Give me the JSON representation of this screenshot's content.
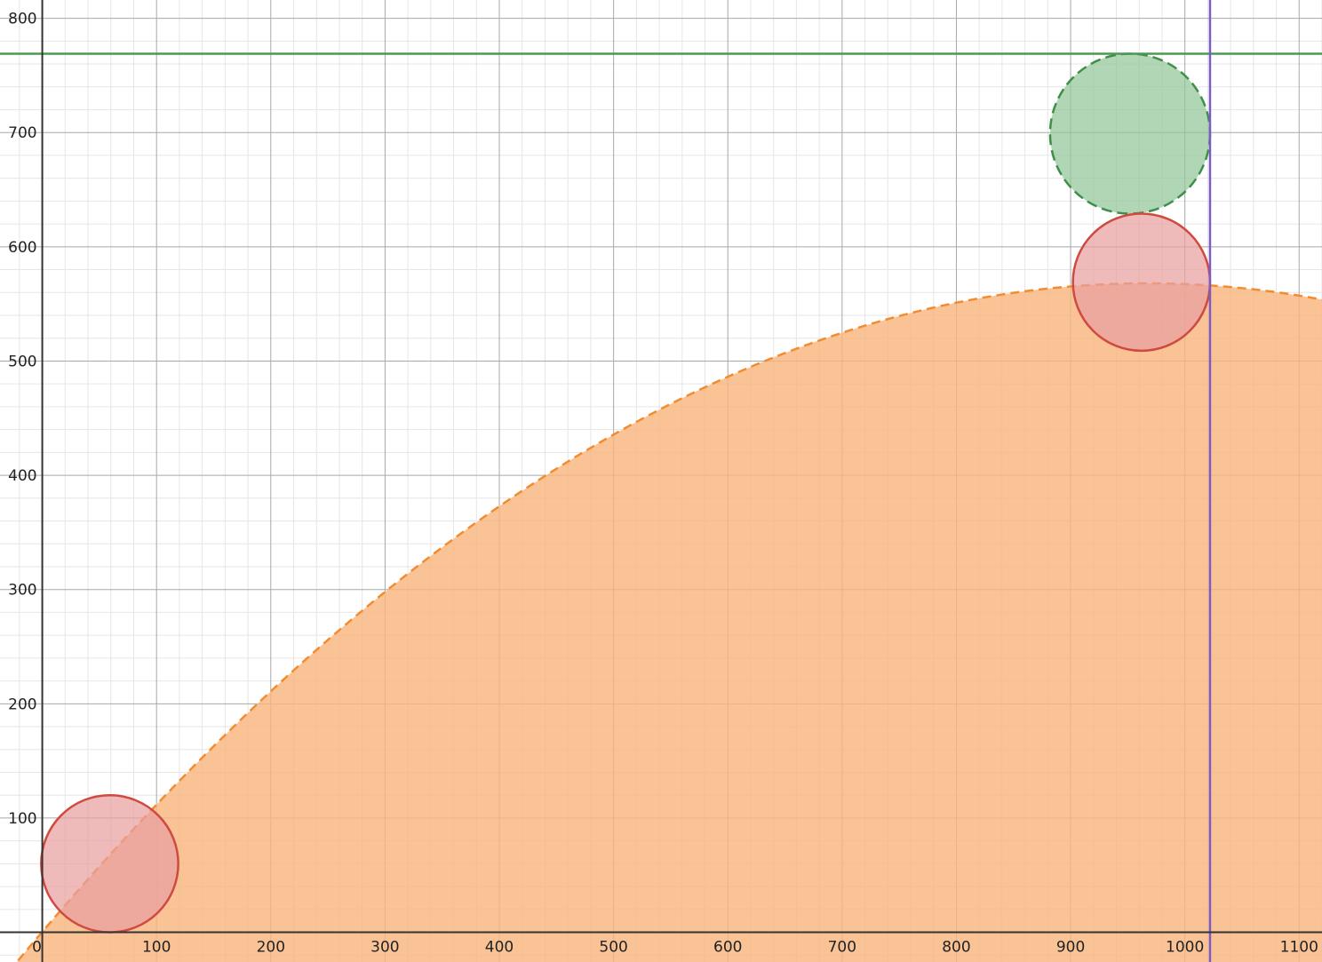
{
  "chart_data": {
    "type": "scatter",
    "title": "",
    "xlabel": "",
    "ylabel": "",
    "xlim": [
      -37,
      1120
    ],
    "ylim": [
      -26,
      816
    ],
    "grid": true,
    "x_ticks": [
      0,
      100,
      200,
      300,
      400,
      500,
      600,
      700,
      800,
      900,
      1000,
      1100
    ],
    "y_ticks": [
      100,
      200,
      300,
      400,
      500,
      600,
      700,
      800
    ],
    "x_tick_labels": [
      "0",
      "100",
      "200",
      "300",
      "400",
      "500",
      "600",
      "700",
      "800",
      "900",
      "1000",
      "1100"
    ],
    "y_tick_labels": [
      "100",
      "200",
      "300",
      "400",
      "500",
      "600",
      "700",
      "800"
    ],
    "parabola": {
      "vertex_x": 967,
      "vertex_y": 568,
      "a": -0.000607,
      "color": "#f28c2f",
      "fill": "#f9b47c",
      "style": "dashed",
      "shaded": "below"
    },
    "horizontal_line": {
      "y": 769,
      "color": "#4a9a52"
    },
    "vertical_line": {
      "x": 1022,
      "color": "#7d5bc4"
    },
    "circles": [
      {
        "cx": 59,
        "cy": 60,
        "r": 60,
        "color": "#cf4a40",
        "fill": "#e8a0a0",
        "style": "solid"
      },
      {
        "cx": 952,
        "cy": 699,
        "r": 70,
        "color": "#3f8f48",
        "fill": "#93c69a",
        "style": "dashed"
      },
      {
        "cx": 962,
        "cy": 569,
        "r": 60,
        "color": "#cf4a40",
        "fill": "#e8a0a0",
        "style": "solid"
      }
    ]
  }
}
